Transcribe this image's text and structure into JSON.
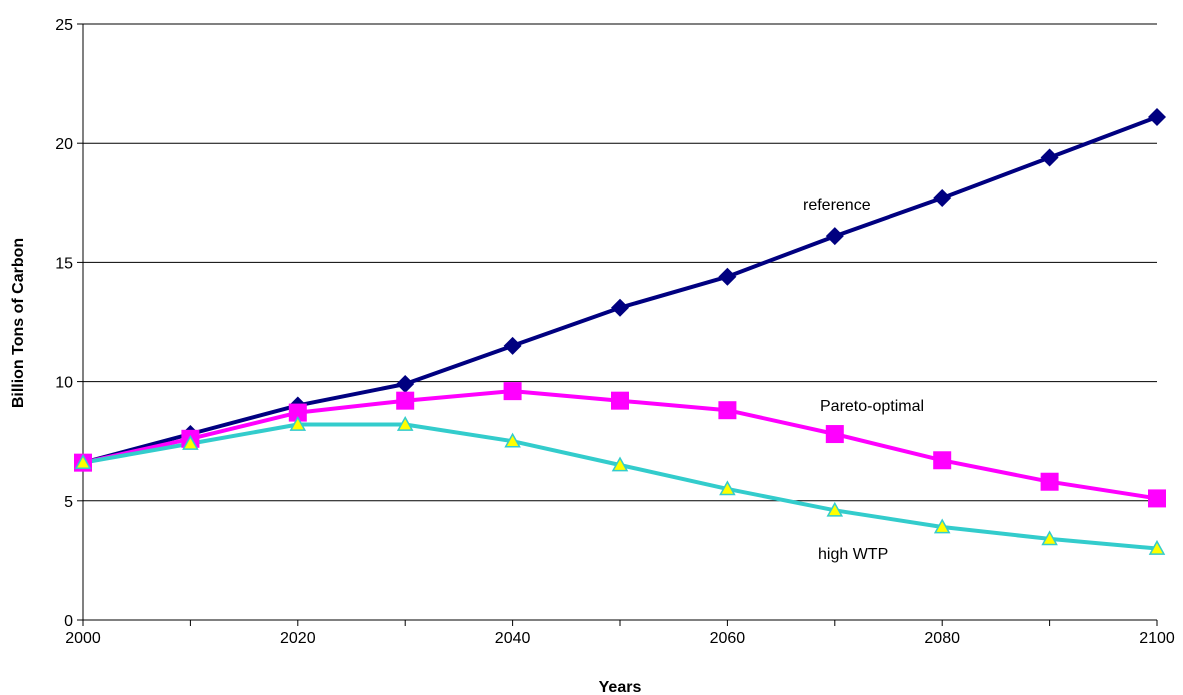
{
  "chart_data": {
    "type": "line",
    "title": "",
    "xlabel": "Years",
    "ylabel": "Billion Tons of Carbon",
    "xlim": [
      2000,
      2100
    ],
    "ylim": [
      0,
      25
    ],
    "x_ticks": [
      2000,
      2020,
      2040,
      2060,
      2080,
      2100
    ],
    "y_ticks": [
      0,
      5,
      10,
      15,
      20,
      25
    ],
    "grid": "horizontal",
    "x": [
      2000,
      2010,
      2020,
      2030,
      2040,
      2050,
      2060,
      2070,
      2080,
      2090,
      2100
    ],
    "series": [
      {
        "name": "reference",
        "color": "#000080",
        "marker": "diamond",
        "values": [
          6.6,
          7.8,
          9.0,
          9.9,
          11.5,
          13.1,
          14.4,
          16.1,
          17.7,
          19.4,
          21.1
        ]
      },
      {
        "name": "Pareto-optimal",
        "color": "#ff00ff",
        "marker": "square",
        "values": [
          6.6,
          7.6,
          8.7,
          9.2,
          9.6,
          9.2,
          8.8,
          7.8,
          6.7,
          5.8,
          5.1
        ]
      },
      {
        "name": "high WTP",
        "color": "#33cccc",
        "marker": "triangle",
        "marker_fill": "#ffff00",
        "values": [
          6.6,
          7.4,
          8.2,
          8.2,
          7.5,
          6.5,
          5.5,
          4.6,
          3.9,
          3.4,
          3.0
        ]
      }
    ]
  }
}
